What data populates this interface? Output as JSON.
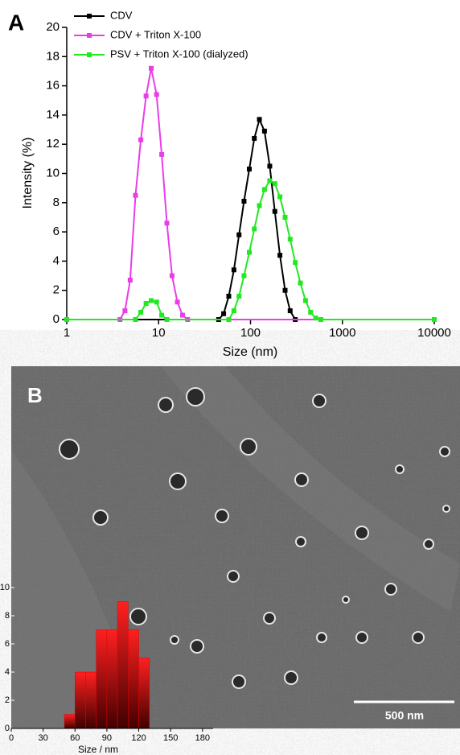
{
  "chart_data": [
    {
      "type": "line",
      "panel_label": "A",
      "xlabel": "Size (nm)",
      "ylabel": "Intensity (%)",
      "xscale": "log",
      "xlim": [
        1,
        10000
      ],
      "xticks": [
        1,
        10,
        100,
        1000,
        10000
      ],
      "ylim": [
        0,
        20
      ],
      "yticks": [
        0,
        2,
        4,
        6,
        8,
        10,
        12,
        14,
        16,
        18,
        20
      ],
      "legend": "upper left",
      "series": [
        {
          "name": "CDV",
          "color": "#000000",
          "x": [
            1,
            45,
            51,
            58,
            66,
            75,
            85,
            97,
            110,
            125,
            142,
            162,
            184,
            209,
            238,
            270,
            307,
            10000
          ],
          "values": [
            0,
            0,
            0.4,
            1.6,
            3.4,
            5.8,
            8.1,
            10.3,
            12.4,
            13.7,
            12.9,
            10.5,
            7.4,
            4.4,
            2.0,
            0.6,
            0,
            0
          ]
        },
        {
          "name": "CDV + Triton X-100",
          "color": "#e83ee8",
          "x": [
            1,
            3.8,
            4.3,
            4.9,
            5.6,
            6.4,
            7.3,
            8.3,
            9.5,
            10.8,
            12.3,
            14,
            16,
            18.2,
            20.7,
            10000
          ],
          "values": [
            0,
            0,
            0.6,
            2.7,
            8.5,
            12.3,
            15.3,
            17.2,
            15.4,
            11.3,
            6.6,
            3.0,
            1.2,
            0.3,
            0,
            0
          ]
        },
        {
          "name": "PSV + Triton X-100 (dialyzed)",
          "color": "#22e822",
          "x": [
            1,
            5.6,
            6.4,
            7.3,
            8.3,
            9.5,
            10.8,
            12.3,
            58,
            66,
            75,
            85,
            97,
            110,
            125,
            142,
            162,
            184,
            209,
            238,
            270,
            307,
            349,
            397,
            451,
            513,
            583,
            10000
          ],
          "values": [
            0,
            0,
            0.5,
            1.1,
            1.3,
            1.2,
            0.3,
            0,
            0,
            0.6,
            1.6,
            3.0,
            4.6,
            6.2,
            7.8,
            8.9,
            9.5,
            9.3,
            8.4,
            7.0,
            5.5,
            3.9,
            2.5,
            1.3,
            0.5,
            0.1,
            0,
            0
          ]
        }
      ]
    },
    {
      "type": "histogram",
      "panel_label": "B",
      "annotation": "500 nm",
      "xlabel": "Size / nm",
      "bins": [
        50,
        60,
        70,
        80,
        90,
        100,
        110,
        120,
        130
      ],
      "values": [
        1,
        4,
        4,
        7,
        7,
        9,
        7,
        5
      ],
      "color": "#e00000",
      "xlim": [
        0,
        190
      ],
      "xticks": [
        0,
        30,
        60,
        90,
        120,
        150,
        180
      ],
      "ylim": [
        0,
        10
      ],
      "yticks": [
        0,
        2,
        4,
        6,
        8,
        10
      ]
    }
  ]
}
